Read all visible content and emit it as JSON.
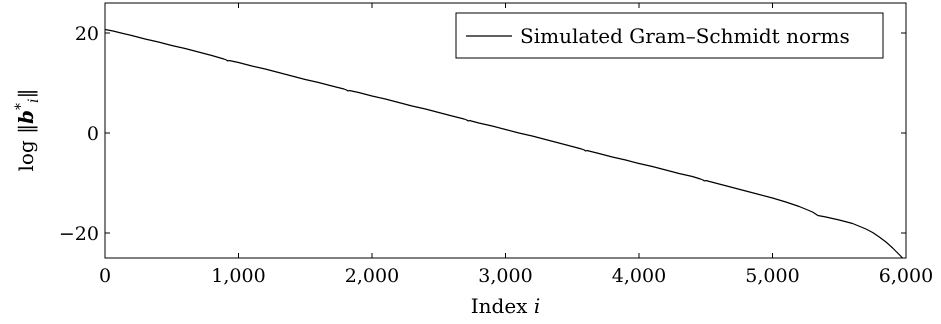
{
  "chart_data": {
    "type": "line",
    "title": "",
    "xlabel": "Index i",
    "ylabel": "log ||b*_i||",
    "xlim": [
      0,
      6000
    ],
    "ylim": [
      -25,
      26
    ],
    "x_ticks": [
      {
        "value": 0,
        "label": "0"
      },
      {
        "value": 1000,
        "label": "1,000"
      },
      {
        "value": 2000,
        "label": "2,000"
      },
      {
        "value": 3000,
        "label": "3,000"
      },
      {
        "value": 4000,
        "label": "4,000"
      },
      {
        "value": 5000,
        "label": "5,000"
      },
      {
        "value": 6000,
        "label": "6,000"
      }
    ],
    "y_ticks": [
      {
        "value": 20,
        "label": "20"
      },
      {
        "value": 0,
        "label": "0"
      },
      {
        "value": -20,
        "label": "−20"
      }
    ],
    "grid": false,
    "legend_position": "top-right",
    "series": [
      {
        "name": "Simulated Gram–Schmidt norms",
        "color": "#000000",
        "x": [
          0,
          60,
          120,
          200,
          300,
          400,
          500,
          600,
          700,
          800,
          890,
          900,
          910,
          920,
          930,
          1000,
          1100,
          1200,
          1300,
          1400,
          1500,
          1600,
          1700,
          1790,
          1800,
          1810,
          1820,
          1830,
          1900,
          2000,
          2100,
          2200,
          2300,
          2400,
          2500,
          2600,
          2690,
          2700,
          2710,
          2720,
          2730,
          2800,
          2900,
          3000,
          3100,
          3200,
          3300,
          3400,
          3500,
          3570,
          3580,
          3590,
          3600,
          3610,
          3700,
          3800,
          3900,
          4000,
          4100,
          4200,
          4300,
          4400,
          4460,
          4470,
          4480,
          4490,
          4500,
          4600,
          4700,
          4800,
          4900,
          5000,
          5100,
          5200,
          5300,
          5340,
          5400,
          5500,
          5600,
          5700,
          5750,
          5800,
          5850,
          5900,
          5930,
          5960,
          5980,
          5990,
          6000
        ],
        "y": [
          20.7,
          20.4,
          20.0,
          19.5,
          18.8,
          18.2,
          17.5,
          16.9,
          16.2,
          15.5,
          14.8,
          14.7,
          14.6,
          14.4,
          14.5,
          14.1,
          13.4,
          12.8,
          12.1,
          11.4,
          10.7,
          10.1,
          9.4,
          8.8,
          8.7,
          8.6,
          8.4,
          8.5,
          8.1,
          7.4,
          6.8,
          6.1,
          5.4,
          4.8,
          4.1,
          3.4,
          2.8,
          2.7,
          2.6,
          2.4,
          2.5,
          2.0,
          1.4,
          0.7,
          0.0,
          -0.6,
          -1.3,
          -2.0,
          -2.7,
          -3.2,
          -3.3,
          -3.4,
          -3.6,
          -3.5,
          -4.1,
          -4.8,
          -5.4,
          -6.1,
          -6.7,
          -7.4,
          -8.1,
          -8.7,
          -9.2,
          -9.3,
          -9.4,
          -9.6,
          -9.5,
          -10.2,
          -10.9,
          -11.6,
          -12.3,
          -13.0,
          -13.8,
          -14.7,
          -15.8,
          -16.5,
          -16.8,
          -17.4,
          -18.1,
          -19.2,
          -19.9,
          -20.8,
          -21.8,
          -23.0,
          -23.8,
          -24.6,
          -25.2,
          -25.6,
          -26.0
        ]
      }
    ]
  }
}
